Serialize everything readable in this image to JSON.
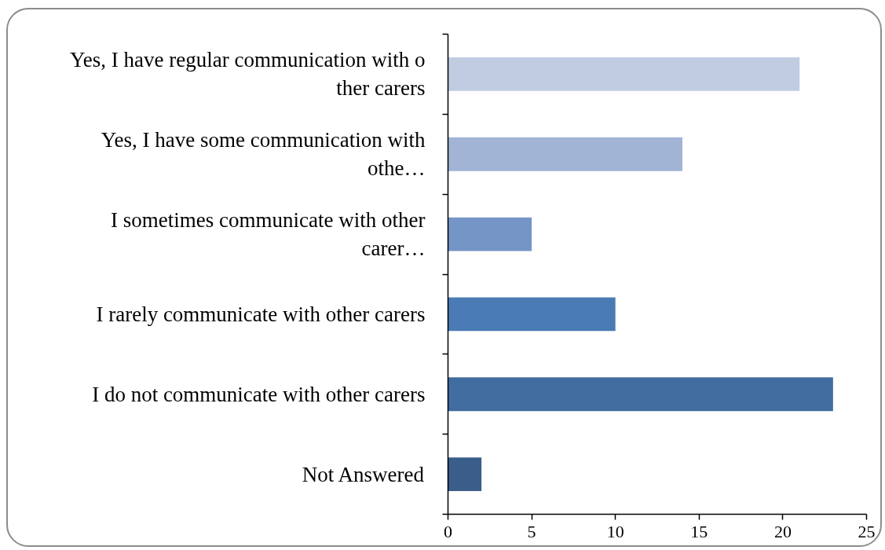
{
  "chart_data": {
    "type": "bar",
    "orientation": "horizontal",
    "categories": [
      "Yes, I have regular communication with o\nther carers",
      "Yes, I have some communication with\nothe…",
      "I sometimes communicate with other\ncarer…",
      "I rarely communicate with other carers",
      "I do not communicate with other carers",
      "Not Answered"
    ],
    "values": [
      21,
      14,
      5,
      10,
      23,
      2
    ],
    "colors": [
      "#c0cce1",
      "#a1b4d6",
      "#7595c6",
      "#4a7bb4",
      "#426da0",
      "#3a5d8a"
    ],
    "xlim": [
      0,
      25
    ],
    "xticks": [
      0,
      5,
      10,
      15,
      20,
      25
    ],
    "grid": false
  }
}
